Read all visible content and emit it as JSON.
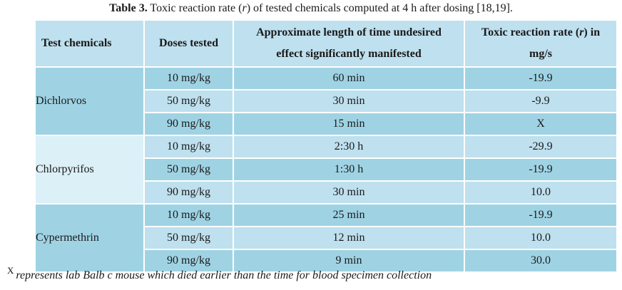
{
  "caption": {
    "label": "Table 3.",
    "text_a": " Toxic reaction rate (",
    "var": "r",
    "text_b": ") of tested chemicals computed at 4 h after dosing [18,19]."
  },
  "headers": {
    "chemicals": "Test chemicals",
    "doses": "Doses tested",
    "time_line1": "Approximate length of time undesired",
    "time_line2": "effect significantly manifested",
    "rate_a": "Toxic reaction rate (",
    "rate_var": "r",
    "rate_b": ") in",
    "rate_unit": "mg/s"
  },
  "groups": [
    {
      "chemical": "Dichlorvos",
      "rows": [
        {
          "dose": "10 mg/kg",
          "time": "60 min",
          "rate": "-19.9"
        },
        {
          "dose": "50 mg/kg",
          "time": "30 min",
          "rate": "-9.9"
        },
        {
          "dose": "90 mg/kg",
          "time": "15 min",
          "rate": "X"
        }
      ]
    },
    {
      "chemical": "Chlorpyrifos",
      "rows": [
        {
          "dose": "10 mg/kg",
          "time": "2:30 h",
          "rate": "-29.9"
        },
        {
          "dose": "50 mg/kg",
          "time": "1:30 h",
          "rate": "-19.9"
        },
        {
          "dose": "90 mg/kg",
          "time": "30 min",
          "rate": "10.0"
        }
      ]
    },
    {
      "chemical": "Cypermethrin",
      "rows": [
        {
          "dose": "10 mg/kg",
          "time": "25 min",
          "rate": "-19.9"
        },
        {
          "dose": "50 mg/kg",
          "time": "12 min",
          "rate": "10.0"
        },
        {
          "dose": "90 mg/kg",
          "time": "9 min",
          "rate": "30.0"
        }
      ]
    }
  ],
  "footnote": {
    "mark": "X",
    "text": "represents lab Balb c mouse which died earlier than the time for blood specimen collection"
  },
  "colors": {
    "header_fill": "#bfe0ee",
    "row_dark": "#9fd3e4",
    "row_light": "#bfe0ee",
    "group_pale": "#dcf0f7"
  }
}
